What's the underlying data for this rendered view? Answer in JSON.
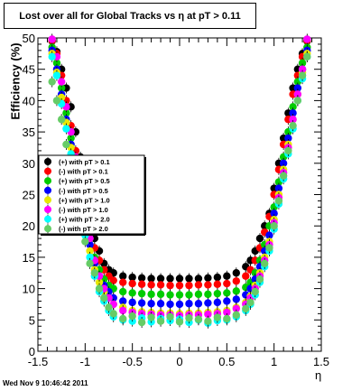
{
  "title": "Lost over all for Global Tracks vs   η at pT > 0.11",
  "timestamp": "Wed Nov  9 10:46:42 2011",
  "chart_data": {
    "type": "scatter",
    "title": "Lost over all for Global Tracks vs   η at pT > 0.11",
    "xlabel": "η",
    "ylabel": "Efficiency (%)",
    "xlim": [
      -1.5,
      1.5
    ],
    "ylim": [
      0,
      50
    ],
    "xticks": [
      "-1.5",
      "-1",
      "-0.5",
      "0",
      "0.5",
      "1",
      "1.5"
    ],
    "yticks": [
      "0",
      "5",
      "10",
      "15",
      "20",
      "25",
      "30",
      "35",
      "40",
      "45",
      "50"
    ],
    "legend_position": "middle-left",
    "series": [
      {
        "name": "(+) with pT > 0.1",
        "color": "#000000",
        "x": [
          -1.35,
          -1.3,
          -1.25,
          -1.2,
          -1.15,
          -1.1,
          -1.05,
          -1.0,
          -0.95,
          -0.9,
          -0.85,
          -0.8,
          -0.75,
          -0.7,
          -0.6,
          -0.5,
          -0.4,
          -0.3,
          -0.2,
          -0.1,
          0.0,
          0.1,
          0.2,
          0.3,
          0.4,
          0.5,
          0.6,
          0.7,
          0.75,
          0.8,
          0.85,
          0.9,
          0.95,
          1.0,
          1.05,
          1.1,
          1.15,
          1.2,
          1.25,
          1.3,
          1.35
        ],
        "y": [
          49.5,
          47.8,
          45,
          42,
          39,
          35,
          31,
          25,
          21,
          18,
          16,
          14,
          13,
          12.5,
          12,
          11.8,
          11.7,
          11.6,
          11.6,
          11.6,
          11.6,
          11.6,
          11.6,
          11.7,
          11.8,
          12,
          12.5,
          13.5,
          14.5,
          16,
          18,
          20,
          22,
          26,
          30,
          34,
          38,
          42,
          45,
          47.5,
          49.5
        ]
      },
      {
        "name": "(-) with pT > 0.1",
        "color": "#ff0000",
        "x": [
          -1.35,
          -1.3,
          -1.25,
          -1.2,
          -1.15,
          -1.1,
          -1.05,
          -1.0,
          -0.95,
          -0.9,
          -0.85,
          -0.8,
          -0.75,
          -0.7,
          -0.6,
          -0.5,
          -0.4,
          -0.3,
          -0.2,
          -0.1,
          0.0,
          0.1,
          0.2,
          0.3,
          0.4,
          0.5,
          0.6,
          0.7,
          0.75,
          0.8,
          0.85,
          0.9,
          0.95,
          1.0,
          1.05,
          1.1,
          1.15,
          1.2,
          1.25,
          1.3,
          1.35
        ],
        "y": [
          49.6,
          47.5,
          44,
          40,
          36,
          32,
          28,
          23,
          19,
          16.5,
          14.5,
          13,
          12,
          11.3,
          11,
          10.8,
          10.7,
          10.6,
          10.6,
          10.5,
          10.5,
          10.5,
          10.6,
          10.6,
          10.7,
          10.8,
          11.2,
          12,
          13,
          14.5,
          16.5,
          19,
          21.5,
          25,
          29,
          33,
          37,
          41,
          44,
          47,
          49.6
        ]
      },
      {
        "name": "(+) with pT > 0.5",
        "color": "#00cc00",
        "x": [
          -1.35,
          -1.3,
          -1.25,
          -1.2,
          -1.15,
          -1.1,
          -1.05,
          -1.0,
          -0.95,
          -0.9,
          -0.85,
          -0.8,
          -0.75,
          -0.7,
          -0.6,
          -0.5,
          -0.4,
          -0.3,
          -0.2,
          -0.1,
          0.0,
          0.1,
          0.2,
          0.3,
          0.4,
          0.5,
          0.6,
          0.7,
          0.75,
          0.8,
          0.85,
          0.9,
          0.95,
          1.0,
          1.05,
          1.1,
          1.15,
          1.2,
          1.25,
          1.3,
          1.35
        ],
        "y": [
          48.5,
          46,
          42,
          38,
          34,
          30,
          26,
          21,
          18,
          15,
          13,
          11.5,
          10.5,
          10,
          9.5,
          9.3,
          9.2,
          9.1,
          9.1,
          9.0,
          9.0,
          9.0,
          9.1,
          9.1,
          9.2,
          9.3,
          9.6,
          10.2,
          11,
          12.5,
          14.5,
          17,
          20,
          23,
          27,
          31,
          35,
          39,
          43,
          46,
          48.5
        ]
      },
      {
        "name": "(-) with pT > 0.5",
        "color": "#0000ff",
        "x": [
          -1.35,
          -1.3,
          -1.25,
          -1.2,
          -1.15,
          -1.1,
          -1.05,
          -1.0,
          -0.95,
          -0.9,
          -0.85,
          -0.8,
          -0.75,
          -0.7,
          -0.6,
          -0.5,
          -0.4,
          -0.3,
          -0.2,
          -0.1,
          0.0,
          0.1,
          0.2,
          0.3,
          0.4,
          0.5,
          0.6,
          0.7,
          0.75,
          0.8,
          0.85,
          0.9,
          0.95,
          1.0,
          1.05,
          1.1,
          1.15,
          1.2,
          1.25,
          1.3,
          1.35
        ],
        "y": [
          48,
          45,
          41,
          37,
          33,
          29,
          25,
          20,
          17,
          14,
          12,
          10.5,
          9.5,
          8.5,
          8,
          7.8,
          7.7,
          7.6,
          7.6,
          7.5,
          7.5,
          7.6,
          7.6,
          7.7,
          7.8,
          8,
          8.3,
          9,
          10,
          11.5,
          13.5,
          16,
          18.5,
          22,
          26,
          30,
          34,
          38,
          42,
          45,
          48
        ]
      },
      {
        "name": "(+) with pT > 1.0",
        "color": "#e8e800",
        "x": [
          -1.35,
          -1.3,
          -1.25,
          -1.2,
          -1.15,
          -1.1,
          -1.05,
          -1.0,
          -0.95,
          -0.9,
          -0.85,
          -0.8,
          -0.75,
          -0.7,
          -0.6,
          -0.5,
          -0.4,
          -0.3,
          -0.2,
          -0.1,
          0.0,
          0.1,
          0.2,
          0.3,
          0.4,
          0.5,
          0.6,
          0.7,
          0.75,
          0.8,
          0.85,
          0.9,
          0.95,
          1.0,
          1.05,
          1.1,
          1.15,
          1.2,
          1.25,
          1.3,
          1.35
        ],
        "y": [
          47.5,
          44.5,
          40.5,
          36.5,
          32.5,
          28.5,
          24.5,
          19.5,
          16,
          13,
          11,
          9.5,
          8.5,
          7.5,
          7,
          6.5,
          6.3,
          6.2,
          6.1,
          6.1,
          6.0,
          6.1,
          6.1,
          6.2,
          6.3,
          6.5,
          7,
          7.8,
          8.8,
          10.5,
          12.5,
          15,
          17.5,
          21,
          25,
          29,
          33,
          37,
          41,
          44.5,
          47.5
        ]
      },
      {
        "name": "(-) with pT > 1.0",
        "color": "#ff00ff",
        "x": [
          -1.35,
          -1.3,
          -1.25,
          -1.2,
          -1.15,
          -1.1,
          -1.05,
          -1.0,
          -0.95,
          -0.9,
          -0.85,
          -0.8,
          -0.75,
          -0.7,
          -0.6,
          -0.5,
          -0.4,
          -0.3,
          -0.2,
          -0.1,
          0.0,
          0.1,
          0.2,
          0.3,
          0.4,
          0.5,
          0.6,
          0.7,
          0.75,
          0.8,
          0.85,
          0.9,
          0.95,
          1.0,
          1.05,
          1.1,
          1.15,
          1.2,
          1.25,
          1.3,
          1.35
        ],
        "y": [
          49.8,
          47,
          43,
          39,
          35,
          31,
          27,
          22,
          18,
          14.5,
          12,
          10,
          8.5,
          7.5,
          6.5,
          6.2,
          6.0,
          5.9,
          5.8,
          5.8,
          5.7,
          5.8,
          5.8,
          5.9,
          6.0,
          6.2,
          6.8,
          7.5,
          8.5,
          10,
          12,
          14.5,
          17,
          20.5,
          24.5,
          28.5,
          32.5,
          37,
          41,
          45,
          49.8
        ]
      },
      {
        "name": "(+) with pT > 2.0",
        "color": "#00ffff",
        "x": [
          -1.35,
          -1.3,
          -1.25,
          -1.2,
          -1.15,
          -1.1,
          -1.05,
          -1.0,
          -0.95,
          -0.9,
          -0.85,
          -0.8,
          -0.75,
          -0.7,
          -0.6,
          -0.5,
          -0.4,
          -0.3,
          -0.2,
          -0.1,
          0.0,
          0.1,
          0.2,
          0.3,
          0.4,
          0.5,
          0.6,
          0.7,
          0.75,
          0.8,
          0.85,
          0.9,
          0.95,
          1.0,
          1.05,
          1.1,
          1.15,
          1.2,
          1.25,
          1.3,
          1.35
        ],
        "y": [
          47,
          44,
          39.5,
          35.5,
          31.5,
          27.5,
          23.5,
          18.5,
          15,
          12,
          9.5,
          8,
          6.5,
          5.5,
          5,
          4.8,
          5.3,
          4.7,
          5.2,
          4.9,
          5.1,
          4.6,
          5.0,
          4.5,
          4.9,
          5.0,
          5.5,
          6.5,
          7.5,
          9,
          11,
          13.5,
          16,
          19.5,
          23.5,
          27.5,
          31.5,
          35.5,
          40,
          43.5,
          47
        ]
      },
      {
        "name": "(-) with pT > 2.0",
        "color": "#66cc66",
        "x": [
          -1.35,
          -1.3,
          -1.25,
          -1.2,
          -1.15,
          -1.1,
          -1.05,
          -1.0,
          -0.95,
          -0.9,
          -0.85,
          -0.8,
          -0.75,
          -0.7,
          -0.6,
          -0.5,
          -0.4,
          -0.3,
          -0.2,
          -0.1,
          0.0,
          0.1,
          0.2,
          0.3,
          0.4,
          0.5,
          0.6,
          0.7,
          0.75,
          0.8,
          0.85,
          0.9,
          0.95,
          1.0,
          1.05,
          1.1,
          1.15,
          1.2,
          1.25,
          1.3,
          1.35
        ],
        "y": [
          43,
          40,
          37,
          33,
          29.5,
          26,
          22,
          17.5,
          14,
          12.5,
          10,
          8.5,
          7,
          6,
          5.2,
          5.6,
          4.6,
          5.4,
          4.8,
          5.5,
          4.7,
          5.3,
          5.1,
          4.8,
          5.4,
          5.2,
          5.8,
          6.8,
          7.8,
          9.5,
          11.5,
          14,
          16.5,
          20,
          24,
          28,
          32,
          36,
          40,
          44,
          47
        ]
      }
    ]
  }
}
